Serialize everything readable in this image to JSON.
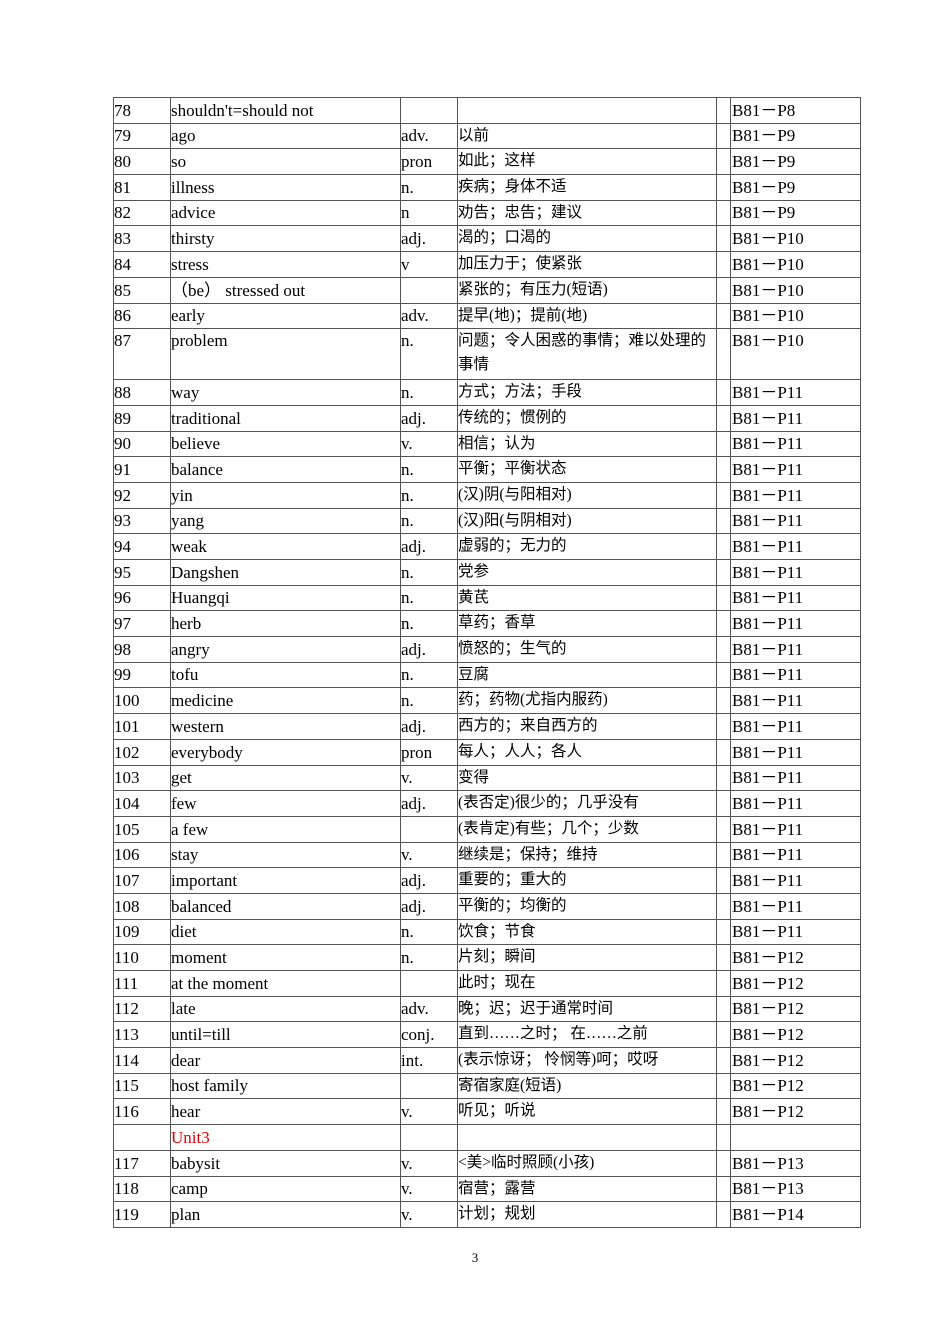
{
  "table": {
    "rows": [
      {
        "num": "78",
        "word": "shouldn't=should not",
        "pos": "",
        "meaning": "",
        "ref": "B81－P8"
      },
      {
        "num": "79",
        "word": "ago",
        "pos": "adv.",
        "meaning": "以前",
        "ref": "B81－P9"
      },
      {
        "num": "80",
        "word": "so",
        "pos": "pron",
        "meaning": "如此；这样",
        "ref": "B81－P9"
      },
      {
        "num": "81",
        "word": "illness",
        "pos": "n.",
        "meaning": "疾病；身体不适",
        "ref": "B81－P9"
      },
      {
        "num": "82",
        "word": "advice",
        "pos": "n",
        "meaning": "劝告；忠告；建议",
        "ref": "B81－P9"
      },
      {
        "num": "83",
        "word": "thirsty",
        "pos": "adj.",
        "meaning": "渴的；口渴的",
        "ref": "B81－P10"
      },
      {
        "num": "84",
        "word": "stress",
        "pos": "v",
        "meaning": "加压力于；使紧张",
        "ref": "B81－P10"
      },
      {
        "num": "85",
        "word": "（be） stressed out",
        "pos": "",
        "meaning": "紧张的；有压力(短语)",
        "ref": "B81－P10"
      },
      {
        "num": "86",
        "word": "early",
        "pos": "adv.",
        "meaning": "提早(地)；提前(地)",
        "ref": "B81－P10"
      },
      {
        "num": "87",
        "word": "problem",
        "pos": "n.",
        "meaning": "问题；令人困惑的事情；难以处理的事情",
        "ref": "B81－P10",
        "tall": true
      },
      {
        "num": "88",
        "word": "way",
        "pos": "n.",
        "meaning": "方式；方法；手段",
        "ref": "B81－P11"
      },
      {
        "num": "89",
        "word": "traditional",
        "pos": "adj.",
        "meaning": "传统的；惯例的",
        "ref": "B81－P11"
      },
      {
        "num": "90",
        "word": "believe",
        "pos": "v.",
        "meaning": "相信；认为",
        "ref": "B81－P11"
      },
      {
        "num": "91",
        "word": "balance",
        "pos": "n.",
        "meaning": "平衡；平衡状态",
        "ref": "B81－P11"
      },
      {
        "num": "92",
        "word": "yin",
        "pos": "n.",
        "meaning": "(汉)阴(与阳相对)",
        "ref": "B81－P11"
      },
      {
        "num": "93",
        "word": "yang",
        "pos": "n.",
        "meaning": "(汉)阳(与阴相对)",
        "ref": "B81－P11"
      },
      {
        "num": "94",
        "word": "weak",
        "pos": "adj.",
        "meaning": "虚弱的；无力的",
        "ref": "B81－P11"
      },
      {
        "num": "95",
        "word": "Dangshen",
        "pos": "n.",
        "meaning": "党参",
        "ref": "B81－P11"
      },
      {
        "num": "96",
        "word": "Huangqi",
        "pos": "n.",
        "meaning": "黄芪",
        "ref": "B81－P11"
      },
      {
        "num": "97",
        "word": "herb",
        "pos": "n.",
        "meaning": "草药；香草",
        "ref": "B81－P11"
      },
      {
        "num": "98",
        "word": "angry",
        "pos": "adj.",
        "meaning": "愤怒的；生气的",
        "ref": "B81－P11"
      },
      {
        "num": "99",
        "word": "tofu",
        "pos": "n.",
        "meaning": "豆腐",
        "ref": "B81－P11"
      },
      {
        "num": "100",
        "word": "medicine",
        "pos": "n.",
        "meaning": "药；药物(尤指内服药)",
        "ref": "B81－P11"
      },
      {
        "num": "101",
        "word": "western",
        "pos": "adj.",
        "meaning": "西方的；来自西方的",
        "ref": "B81－P11"
      },
      {
        "num": "102",
        "word": "everybody",
        "pos": "pron",
        "meaning": "每人；人人；各人",
        "ref": "B81－P11"
      },
      {
        "num": "103",
        "word": "get",
        "pos": "v.",
        "meaning": "变得",
        "ref": "B81－P11"
      },
      {
        "num": "104",
        "word": "few",
        "pos": "adj.",
        "meaning": "(表否定)很少的；几乎没有",
        "ref": "B81－P11"
      },
      {
        "num": "105",
        "word": "a few",
        "pos": "",
        "meaning": "(表肯定)有些；几个；少数",
        "ref": "B81－P11"
      },
      {
        "num": "106",
        "word": "stay",
        "pos": "v.",
        "meaning": "继续是；保持；维持",
        "ref": "B81－P11"
      },
      {
        "num": "107",
        "word": "important",
        "pos": "adj.",
        "meaning": "重要的；重大的",
        "ref": "B81－P11"
      },
      {
        "num": "108",
        "word": "balanced",
        "pos": "adj.",
        "meaning": "平衡的；均衡的",
        "ref": "B81－P11"
      },
      {
        "num": "109",
        "word": "diet",
        "pos": "n.",
        "meaning": "饮食；节食",
        "ref": "B81－P11"
      },
      {
        "num": "110",
        "word": "moment",
        "pos": "n.",
        "meaning": "片刻；瞬间",
        "ref": "B81－P12"
      },
      {
        "num": "111",
        "word": "at the moment",
        "pos": "",
        "meaning": "此时；现在",
        "ref": "B81－P12"
      },
      {
        "num": "112",
        "word": "late",
        "pos": "adv.",
        "meaning": "晚；迟；迟于通常时间",
        "ref": "B81－P12"
      },
      {
        "num": "113",
        "word": "until=till",
        "pos": "conj.",
        "meaning": "直到……之时； 在……之前",
        "ref": "B81－P12"
      },
      {
        "num": "114",
        "word": "dear",
        "pos": "int.",
        "meaning": "(表示惊讶； 怜悯等)呵；哎呀",
        "ref": "B81－P12"
      },
      {
        "num": "115",
        "word": "host family",
        "pos": "",
        "meaning": "寄宿家庭(短语)",
        "ref": "B81－P12"
      },
      {
        "num": "116",
        "word": "hear",
        "pos": "v.",
        "meaning": "听见；听说",
        "ref": "B81－P12"
      },
      {
        "num": "",
        "word": "Unit3",
        "pos": "",
        "meaning": "",
        "ref": "",
        "heading": true
      },
      {
        "num": "117",
        "word": "babysit",
        "pos": "v.",
        "meaning": "<美>临时照顾(小孩)",
        "ref": "B81－P13"
      },
      {
        "num": "118",
        "word": "camp",
        "pos": "v.",
        "meaning": "宿营；露营",
        "ref": "B81－P13"
      },
      {
        "num": "119",
        "word": "plan",
        "pos": "v.",
        "meaning": "计划；规划",
        "ref": "B81－P14"
      }
    ]
  },
  "heading_color": "#e00000",
  "page_number": "3"
}
